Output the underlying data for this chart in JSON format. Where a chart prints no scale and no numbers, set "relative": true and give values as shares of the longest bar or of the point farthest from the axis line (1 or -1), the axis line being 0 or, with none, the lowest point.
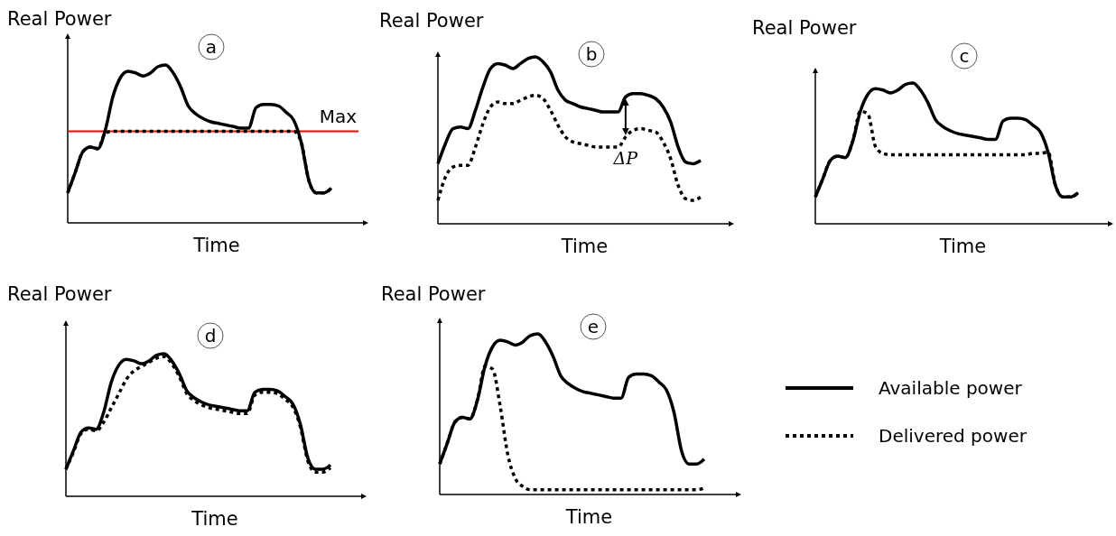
{
  "chart_data": [
    {
      "type": "line",
      "title": "a",
      "xlabel": "Time",
      "ylabel": "Real Power",
      "relative": true,
      "categories": [
        null,
        null,
        null,
        null,
        null,
        null,
        null,
        null,
        null,
        null,
        null,
        null,
        null,
        null,
        null,
        null,
        null,
        null,
        null,
        null,
        null,
        null,
        null,
        null,
        null,
        null,
        null,
        null,
        null,
        null,
        null,
        null,
        null,
        null,
        null,
        null
      ],
      "series": [
        {
          "color": "#000000",
          "line_style": "solid",
          "values": [
            0.19,
            0.32,
            0.45,
            0.48,
            0.47,
            0.59,
            0.8,
            0.92,
            0.96,
            0.95,
            0.93,
            0.95,
            0.99,
            1.0,
            0.95,
            0.86,
            0.74,
            0.69,
            0.66,
            0.64,
            0.63,
            0.62,
            0.61,
            0.6,
            0.6,
            0.73,
            0.75,
            0.75,
            0.74,
            0.7,
            0.65,
            0.51,
            0.27,
            0.19,
            0.19,
            0.22
          ]
        },
        {
          "color": "#000000",
          "line_style": "dotted",
          "values": [
            0.19,
            0.32,
            0.45,
            0.48,
            0.47,
            0.57,
            0.58,
            0.58,
            0.58,
            0.58,
            0.58,
            0.58,
            0.58,
            0.58,
            0.58,
            0.58,
            0.58,
            0.58,
            0.58,
            0.58,
            0.58,
            0.58,
            0.58,
            0.58,
            0.58,
            0.58,
            0.58,
            0.58,
            0.58,
            0.58,
            0.58,
            0.51,
            0.27,
            0.19,
            0.19,
            0.22
          ]
        }
      ],
      "ref_lines": [
        {
          "axis": "y",
          "value": 0.58,
          "label": "Max",
          "color": "#ff0000"
        }
      ]
    },
    {
      "type": "line",
      "title": "b",
      "xlabel": "Time",
      "ylabel": "Real Power",
      "relative": true,
      "categories": [
        null,
        null,
        null,
        null,
        null,
        null,
        null,
        null,
        null,
        null,
        null,
        null,
        null,
        null,
        null,
        null,
        null,
        null,
        null,
        null,
        null,
        null,
        null,
        null,
        null,
        null,
        null,
        null,
        null,
        null,
        null,
        null,
        null,
        null,
        null,
        null
      ],
      "series": [
        {
          "color": "#000000",
          "line_style": "solid",
          "values": [
            0.36,
            0.48,
            0.57,
            0.58,
            0.57,
            0.68,
            0.82,
            0.93,
            0.96,
            0.95,
            0.93,
            0.96,
            0.99,
            1.0,
            0.97,
            0.91,
            0.8,
            0.74,
            0.72,
            0.7,
            0.69,
            0.68,
            0.67,
            0.67,
            0.67,
            0.76,
            0.78,
            0.78,
            0.77,
            0.75,
            0.7,
            0.61,
            0.46,
            0.37,
            0.36,
            0.38
          ]
        },
        {
          "color": "#000000",
          "line_style": "dotted",
          "values": [
            0.14,
            0.28,
            0.34,
            0.35,
            0.35,
            0.46,
            0.6,
            0.7,
            0.73,
            0.72,
            0.72,
            0.74,
            0.76,
            0.77,
            0.75,
            0.68,
            0.59,
            0.52,
            0.49,
            0.48,
            0.47,
            0.46,
            0.46,
            0.46,
            0.46,
            0.52,
            0.56,
            0.57,
            0.56,
            0.55,
            0.49,
            0.39,
            0.23,
            0.15,
            0.14,
            0.16
          ]
        }
      ],
      "annotations": [
        "ΔP"
      ]
    },
    {
      "type": "line",
      "title": "c",
      "xlabel": "Time",
      "ylabel": "Real Power",
      "relative": true,
      "categories": [
        null,
        null,
        null,
        null,
        null,
        null,
        null,
        null,
        null,
        null,
        null,
        null,
        null,
        null,
        null,
        null,
        null,
        null,
        null,
        null,
        null,
        null,
        null,
        null,
        null,
        null,
        null,
        null,
        null,
        null,
        null,
        null,
        null,
        null,
        null,
        null
      ],
      "series": [
        {
          "color": "#000000",
          "line_style": "solid",
          "values": [
            0.19,
            0.32,
            0.45,
            0.48,
            0.47,
            0.59,
            0.8,
            0.92,
            0.96,
            0.95,
            0.93,
            0.95,
            0.99,
            1.0,
            0.95,
            0.86,
            0.74,
            0.69,
            0.66,
            0.64,
            0.63,
            0.62,
            0.61,
            0.6,
            0.6,
            0.73,
            0.75,
            0.75,
            0.74,
            0.7,
            0.65,
            0.51,
            0.27,
            0.19,
            0.19,
            0.22
          ]
        },
        {
          "color": "#000000",
          "line_style": "dotted",
          "values": [
            0.19,
            0.32,
            0.45,
            0.48,
            0.47,
            0.59,
            0.8,
            0.78,
            0.55,
            0.5,
            0.49,
            0.49,
            0.49,
            0.49,
            0.49,
            0.49,
            0.49,
            0.49,
            0.49,
            0.49,
            0.49,
            0.49,
            0.49,
            0.49,
            0.49,
            0.49,
            0.49,
            0.49,
            0.49,
            0.5,
            0.5,
            0.51,
            0.27,
            0.19,
            0.19,
            0.22
          ]
        }
      ]
    },
    {
      "type": "line",
      "title": "d",
      "xlabel": "Time",
      "ylabel": "Real Power",
      "relative": true,
      "categories": [
        null,
        null,
        null,
        null,
        null,
        null,
        null,
        null,
        null,
        null,
        null,
        null,
        null,
        null,
        null,
        null,
        null,
        null,
        null,
        null,
        null,
        null,
        null,
        null,
        null,
        null,
        null,
        null,
        null,
        null,
        null,
        null,
        null,
        null,
        null,
        null
      ],
      "series": [
        {
          "color": "#000000",
          "line_style": "solid",
          "values": [
            0.19,
            0.32,
            0.45,
            0.48,
            0.47,
            0.59,
            0.8,
            0.92,
            0.96,
            0.95,
            0.93,
            0.95,
            0.99,
            1.0,
            0.95,
            0.86,
            0.74,
            0.69,
            0.66,
            0.64,
            0.63,
            0.62,
            0.61,
            0.6,
            0.6,
            0.73,
            0.75,
            0.75,
            0.74,
            0.7,
            0.65,
            0.51,
            0.27,
            0.19,
            0.19,
            0.22
          ]
        },
        {
          "color": "#000000",
          "line_style": "dotted",
          "values": [
            0.19,
            0.31,
            0.44,
            0.47,
            0.46,
            0.52,
            0.62,
            0.72,
            0.82,
            0.88,
            0.91,
            0.94,
            0.97,
            0.98,
            0.93,
            0.84,
            0.72,
            0.67,
            0.64,
            0.62,
            0.61,
            0.6,
            0.59,
            0.58,
            0.58,
            0.71,
            0.73,
            0.73,
            0.72,
            0.68,
            0.63,
            0.49,
            0.25,
            0.17,
            0.17,
            0.2
          ]
        }
      ]
    },
    {
      "type": "line",
      "title": "e",
      "xlabel": "Time",
      "ylabel": "Real Power",
      "relative": true,
      "legend": "right",
      "categories": [
        null,
        null,
        null,
        null,
        null,
        null,
        null,
        null,
        null,
        null,
        null,
        null,
        null,
        null,
        null,
        null,
        null,
        null,
        null,
        null,
        null,
        null,
        null,
        null,
        null,
        null,
        null,
        null,
        null,
        null,
        null,
        null,
        null,
        null,
        null,
        null
      ],
      "series": [
        {
          "name": "Available power",
          "color": "#000000",
          "line_style": "solid",
          "values": [
            0.19,
            0.32,
            0.45,
            0.48,
            0.47,
            0.59,
            0.8,
            0.92,
            0.96,
            0.95,
            0.93,
            0.95,
            0.99,
            1.0,
            0.95,
            0.86,
            0.74,
            0.69,
            0.66,
            0.64,
            0.63,
            0.62,
            0.61,
            0.6,
            0.6,
            0.73,
            0.75,
            0.75,
            0.74,
            0.7,
            0.65,
            0.51,
            0.27,
            0.19,
            0.19,
            0.22
          ]
        },
        {
          "name": "Delivered power",
          "color": "#000000",
          "line_style": "dotted",
          "values": [
            0.19,
            0.32,
            0.45,
            0.48,
            0.47,
            0.59,
            0.8,
            0.78,
            0.55,
            0.25,
            0.1,
            0.05,
            0.03,
            0.03,
            0.03,
            0.03,
            0.03,
            0.03,
            0.03,
            0.03,
            0.03,
            0.03,
            0.03,
            0.03,
            0.03,
            0.03,
            0.03,
            0.03,
            0.03,
            0.03,
            0.03,
            0.03,
            0.03,
            0.03,
            0.03,
            0.04
          ]
        }
      ]
    }
  ]
}
